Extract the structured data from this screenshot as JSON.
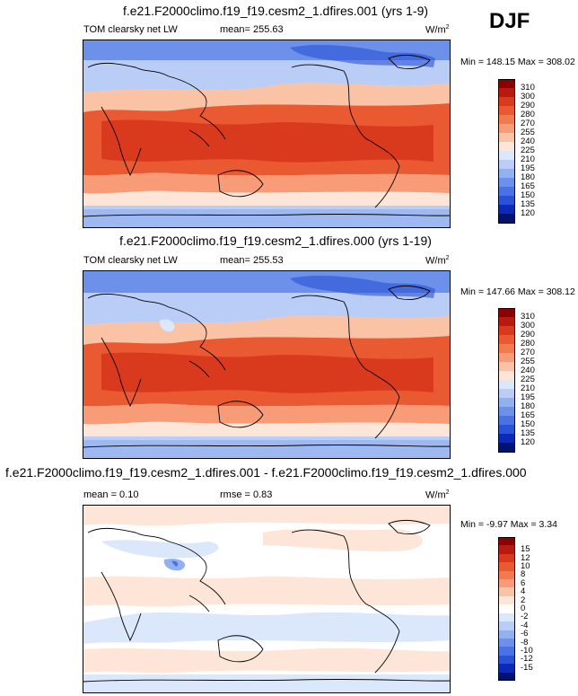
{
  "season": "DJF",
  "panels": [
    {
      "title": "f.e21.F2000climo.f19_f19.cesm2_1.dfires.001 (yrs 1-9)",
      "left_label": "TOM clearsky net LW",
      "mean_label": "mean= 255.63",
      "units": "W/m",
      "units_sup": "2",
      "minmax": "Min = 148.15 Max = 308.02",
      "colorbar": {
        "labels": [
          "310",
          "300",
          "290",
          "280",
          "270",
          "255",
          "240",
          "225",
          "210",
          "195",
          "180",
          "165",
          "150",
          "135",
          "120"
        ],
        "colors": [
          "#8b0000",
          "#b81a10",
          "#d93a1e",
          "#ea5a32",
          "#f27a50",
          "#f79c77",
          "#fbc3a6",
          "#fde6d8",
          "#dbe7fb",
          "#b9cdf6",
          "#93b0f0",
          "#6d91ea",
          "#4b72e3",
          "#2a52d6",
          "#0b2ab8",
          "#00136e"
        ]
      }
    },
    {
      "title": "f.e21.F2000climo.f19_f19.cesm2_1.dfires.000 (yrs 1-19)",
      "left_label": "TOM clearsky net LW",
      "mean_label": "mean= 255.53",
      "units": "W/m",
      "units_sup": "2",
      "minmax": "Min = 147.66 Max = 308.12",
      "colorbar": {
        "labels": [
          "310",
          "300",
          "290",
          "280",
          "270",
          "255",
          "240",
          "225",
          "210",
          "195",
          "180",
          "165",
          "150",
          "135",
          "120"
        ],
        "colors": [
          "#8b0000",
          "#b81a10",
          "#d93a1e",
          "#ea5a32",
          "#f27a50",
          "#f79c77",
          "#fbc3a6",
          "#fde6d8",
          "#dbe7fb",
          "#b9cdf6",
          "#93b0f0",
          "#6d91ea",
          "#4b72e3",
          "#2a52d6",
          "#0b2ab8",
          "#00136e"
        ]
      }
    },
    {
      "title": "f.e21.F2000climo.f19_f19.cesm2_1.dfires.001 - f.e21.F2000climo.f19_f19.cesm2_1.dfires.000",
      "left_label": "mean =   0.10",
      "mean_label": "rmse =   0.83",
      "units": "W/m",
      "units_sup": "2",
      "minmax": "Min =  -9.97 Max =   3.34",
      "colorbar": {
        "labels": [
          "15",
          "12",
          "10",
          "8",
          "6",
          "4",
          "2",
          "0",
          "-2",
          "-4",
          "-6",
          "-8",
          "-10",
          "-12",
          "-15"
        ],
        "colors": [
          "#8b0000",
          "#b81a10",
          "#d93a1e",
          "#ea5a32",
          "#f27a50",
          "#f79c77",
          "#fbc3a6",
          "#fde6d8",
          "#ffffff",
          "#dbe7fb",
          "#b9cdf6",
          "#93b0f0",
          "#6d91ea",
          "#4b72e3",
          "#2a52d6",
          "#0b2ab8",
          "#00136e"
        ]
      }
    }
  ],
  "chart_data": [
    {
      "type": "heatmap",
      "title": "f.e21.F2000climo.f19_f19.cesm2_1.dfires.001 (yrs 1-9)",
      "variable": "TOM clearsky net LW",
      "mean": 255.63,
      "min": 148.15,
      "max": 308.02,
      "units": "W/m2",
      "levels": [
        120,
        135,
        150,
        165,
        180,
        195,
        210,
        225,
        240,
        255,
        270,
        280,
        290,
        300,
        310
      ],
      "projection": "cylindrical equidistant, Pacific-centered"
    },
    {
      "type": "heatmap",
      "title": "f.e21.F2000climo.f19_f19.cesm2_1.dfires.000 (yrs 1-19)",
      "variable": "TOM clearsky net LW",
      "mean": 255.53,
      "min": 147.66,
      "max": 308.12,
      "units": "W/m2",
      "levels": [
        120,
        135,
        150,
        165,
        180,
        195,
        210,
        225,
        240,
        255,
        270,
        280,
        290,
        300,
        310
      ],
      "projection": "cylindrical equidistant, Pacific-centered"
    },
    {
      "type": "heatmap",
      "title": "f.e21.F2000climo.f19_f19.cesm2_1.dfires.001 - f.e21.F2000climo.f19_f19.cesm2_1.dfires.000",
      "mean": 0.1,
      "rmse": 0.83,
      "min": -9.97,
      "max": 3.34,
      "units": "W/m2",
      "levels": [
        -15,
        -12,
        -10,
        -8,
        -6,
        -4,
        -2,
        0,
        2,
        4,
        6,
        8,
        10,
        12,
        15
      ]
    }
  ]
}
